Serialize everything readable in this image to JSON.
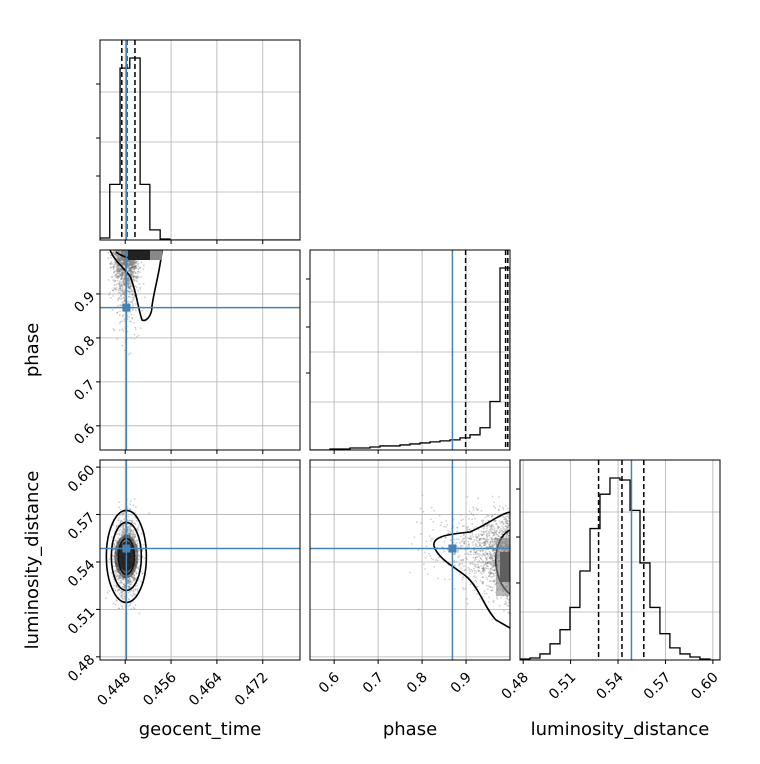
{
  "chart_data": {
    "type": "corner",
    "parameters": [
      "geocent_time",
      "phase",
      "luminosity_distance"
    ],
    "axis_labels": {
      "geocent_time": "geocent_time",
      "phase": "phase",
      "luminosity_distance": "luminosity_distance"
    },
    "ranges": {
      "geocent_time": [
        0.4436,
        0.4785
      ],
      "phase": [
        0.545,
        1.0
      ],
      "luminosity_distance": [
        0.478,
        0.6045
      ]
    },
    "ticks": {
      "geocent_time": [
        {
          "value": 0.448,
          "label": "0.448"
        },
        {
          "value": 0.456,
          "label": "0.456"
        },
        {
          "value": 0.464,
          "label": "0.464"
        },
        {
          "value": 0.472,
          "label": "0.472"
        }
      ],
      "phase": [
        {
          "value": 0.6,
          "label": "0.6"
        },
        {
          "value": 0.7,
          "label": "0.7"
        },
        {
          "value": 0.8,
          "label": "0.8"
        },
        {
          "value": 0.9,
          "label": "0.9"
        }
      ],
      "luminosity_distance": [
        {
          "value": 0.48,
          "label": "0.48"
        },
        {
          "value": 0.51,
          "label": "0.51"
        },
        {
          "value": 0.54,
          "label": "0.54"
        },
        {
          "value": 0.57,
          "label": "0.57"
        },
        {
          "value": 0.6,
          "label": "0.60"
        }
      ]
    },
    "truths": {
      "geocent_time": 0.4482,
      "phase": 0.869,
      "luminosity_distance": 0.5485
    },
    "quantiles": {
      "geocent_time": [
        0.4474,
        0.4483,
        0.4497
      ],
      "phase": [
        0.899,
        0.99,
        0.995
      ],
      "luminosity_distance": [
        0.5277,
        0.5425,
        0.5563
      ]
    },
    "histograms": {
      "geocent_time": {
        "edges": [
          0.4436,
          0.4453,
          0.4471,
          0.4488,
          0.4506,
          0.4523,
          0.4541,
          0.4558,
          0.4576,
          0.4593,
          0.4611,
          0.4628,
          0.4645,
          0.4663,
          0.468,
          0.4698,
          0.4715,
          0.4733,
          0.475,
          0.4768,
          0.4785
        ],
        "counts": [
          2,
          55,
          170,
          180,
          55,
          10,
          1,
          0,
          0,
          0,
          0,
          0,
          0,
          0,
          0,
          0,
          0,
          0,
          0,
          0
        ]
      },
      "phase": {
        "edges": [
          0.545,
          0.5678,
          0.5905,
          0.6133,
          0.636,
          0.6588,
          0.6815,
          0.7042,
          0.727,
          0.7498,
          0.7725,
          0.7952,
          0.818,
          0.8408,
          0.8635,
          0.8862,
          0.909,
          0.9318,
          0.9545,
          0.9773,
          1.0
        ],
        "counts": [
          0,
          0,
          1,
          1,
          2,
          2,
          3,
          4,
          4,
          5,
          6,
          7,
          8,
          9,
          10,
          12,
          15,
          22,
          48,
          180
        ]
      },
      "luminosity_distance": {
        "edges": [
          0.478,
          0.4843,
          0.4906,
          0.497,
          0.5033,
          0.5096,
          0.5159,
          0.5223,
          0.5286,
          0.5349,
          0.5412,
          0.5476,
          0.5539,
          0.5602,
          0.5665,
          0.5728,
          0.5792,
          0.5855,
          0.5918,
          0.5981,
          0.6045
        ],
        "counts": [
          1,
          2,
          6,
          16,
          30,
          52,
          88,
          130,
          164,
          180,
          178,
          148,
          96,
          52,
          26,
          12,
          6,
          3,
          1,
          0
        ]
      }
    },
    "grid": true
  }
}
